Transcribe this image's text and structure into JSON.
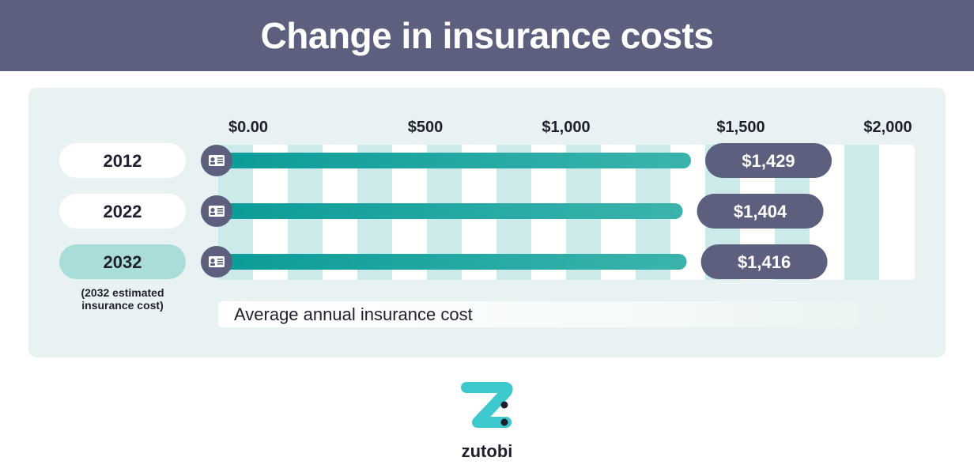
{
  "title": "Change in insurance costs",
  "colors": {
    "header_bg": "#5c5f7d",
    "panel_bg": "#e9f2f2",
    "stripe": "#cceae9",
    "bar_start": "#0b9c98",
    "bar_end": "#3bb3ad",
    "value_pill": "#5c5f7d",
    "highlight_label": "#a9ddd9",
    "icon_bg": "#5c5f7d"
  },
  "chart_data": {
    "type": "bar",
    "orientation": "horizontal",
    "title": "Change in insurance costs",
    "xlabel": "Average annual insurance cost",
    "x_ticks": [
      "$0.00",
      "$500",
      "$1,000",
      "$1,500",
      "$2,000"
    ],
    "xlim": [
      0,
      2000
    ],
    "categories": [
      "2012",
      "2022",
      "2032"
    ],
    "values": [
      1429,
      1404,
      1416
    ],
    "value_labels": [
      "$1,429",
      "$1,404",
      "$1,416"
    ],
    "highlight_category": "2032",
    "bar_icon": "id-card-icon",
    "annotations": [
      "(2032 estimated",
      "insurance cost)"
    ]
  },
  "brand": {
    "name": "zutobi",
    "logo_icon": "z-logo-icon"
  }
}
